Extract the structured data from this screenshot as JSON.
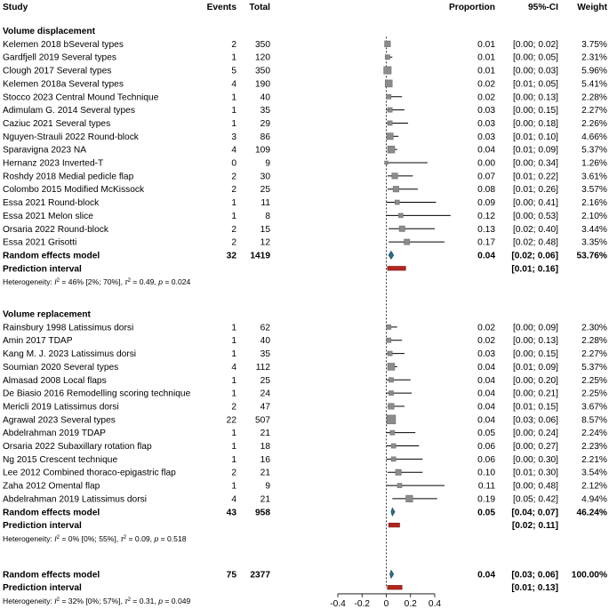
{
  "chart_data": {
    "type": "forest",
    "headers": {
      "study": "Study",
      "events": "Events",
      "total": "Total",
      "proportion": "Proportion",
      "ci": "95%-CI",
      "weight": "Weight"
    },
    "axis": {
      "min": -0.4,
      "max": 0.4,
      "ticks": [
        -0.4,
        -0.2,
        0,
        0.2,
        0.4
      ],
      "tick_labels": [
        "-0.4",
        "-0.2",
        "0",
        "0.2",
        "0.4"
      ],
      "reference_line": 0
    },
    "groups": [
      {
        "title": "Volume displacement",
        "studies": [
          {
            "study": "Kelemen 2018 bSeveral types",
            "events": "2",
            "total": "350",
            "prop": 0.01,
            "lo": 0.0,
            "hi": 0.02,
            "weight": 3.75,
            "prop_label": "0.01",
            "ci_label": "[0.00; 0.02]",
            "weight_label": "3.75%"
          },
          {
            "study": "Gardfjell 2019 Several types",
            "events": "1",
            "total": "120",
            "prop": 0.01,
            "lo": 0.0,
            "hi": 0.05,
            "weight": 2.31,
            "prop_label": "0.01",
            "ci_label": "[0.00; 0.05]",
            "weight_label": "2.31%"
          },
          {
            "study": "Clough 2017 Several types",
            "events": "5",
            "total": "350",
            "prop": 0.01,
            "lo": 0.0,
            "hi": 0.03,
            "weight": 5.96,
            "prop_label": "0.01",
            "ci_label": "[0.00; 0.03]",
            "weight_label": "5.96%"
          },
          {
            "study": "Kelemen 2018a Several types",
            "events": "4",
            "total": "190",
            "prop": 0.02,
            "lo": 0.01,
            "hi": 0.05,
            "weight": 5.41,
            "prop_label": "0.02",
            "ci_label": "[0.01; 0.05]",
            "weight_label": "5.41%"
          },
          {
            "study": "Stocco 2023 Central Mound Technique",
            "events": "1",
            "total": "40",
            "prop": 0.02,
            "lo": 0.0,
            "hi": 0.13,
            "weight": 2.28,
            "prop_label": "0.02",
            "ci_label": "[0.00; 0.13]",
            "weight_label": "2.28%"
          },
          {
            "study": "Adimulam G. 2014 Several types",
            "events": "1",
            "total": "35",
            "prop": 0.03,
            "lo": 0.0,
            "hi": 0.15,
            "weight": 2.27,
            "prop_label": "0.03",
            "ci_label": "[0.00; 0.15]",
            "weight_label": "2.27%"
          },
          {
            "study": "Caziuc 2021 Several types",
            "events": "1",
            "total": "29",
            "prop": 0.03,
            "lo": 0.0,
            "hi": 0.18,
            "weight": 2.26,
            "prop_label": "0.03",
            "ci_label": "[0.00; 0.18]",
            "weight_label": "2.26%"
          },
          {
            "study": "Nguyen-Strauli 2022 Round-block",
            "events": "3",
            "total": "86",
            "prop": 0.03,
            "lo": 0.01,
            "hi": 0.1,
            "weight": 4.66,
            "prop_label": "0.03",
            "ci_label": "[0.01; 0.10]",
            "weight_label": "4.66%"
          },
          {
            "study": "Sparavigna 2023 NA",
            "events": "4",
            "total": "109",
            "prop": 0.04,
            "lo": 0.01,
            "hi": 0.09,
            "weight": 5.37,
            "prop_label": "0.04",
            "ci_label": "[0.01; 0.09]",
            "weight_label": "5.37%"
          },
          {
            "study": "Hernanz 2023 Inverted-T",
            "events": "0",
            "total": "9",
            "prop": 0.0,
            "lo": 0.0,
            "hi": 0.34,
            "weight": 1.26,
            "prop_label": "0.00",
            "ci_label": "[0.00; 0.34]",
            "weight_label": "1.26%"
          },
          {
            "study": "Roshdy 2018 Medial pedicle flap",
            "events": "2",
            "total": "30",
            "prop": 0.07,
            "lo": 0.01,
            "hi": 0.22,
            "weight": 3.61,
            "prop_label": "0.07",
            "ci_label": "[0.01; 0.22]",
            "weight_label": "3.61%"
          },
          {
            "study": "Colombo 2015 Modified McKissock",
            "events": "2",
            "total": "25",
            "prop": 0.08,
            "lo": 0.01,
            "hi": 0.26,
            "weight": 3.57,
            "prop_label": "0.08",
            "ci_label": "[0.01; 0.26]",
            "weight_label": "3.57%"
          },
          {
            "study": "Essa 2021 Round-block",
            "events": "1",
            "total": "11",
            "prop": 0.09,
            "lo": 0.0,
            "hi": 0.41,
            "weight": 2.16,
            "prop_label": "0.09",
            "ci_label": "[0.00; 0.41]",
            "weight_label": "2.16%"
          },
          {
            "study": "Essa 2021 Melon slice",
            "events": "1",
            "total": "8",
            "prop": 0.12,
            "lo": 0.0,
            "hi": 0.53,
            "weight": 2.1,
            "prop_label": "0.12",
            "ci_label": "[0.00; 0.53]",
            "weight_label": "2.10%"
          },
          {
            "study": "Orsaria 2022 Round-block",
            "events": "2",
            "total": "15",
            "prop": 0.13,
            "lo": 0.02,
            "hi": 0.4,
            "weight": 3.44,
            "prop_label": "0.13",
            "ci_label": "[0.02; 0.40]",
            "weight_label": "3.44%"
          },
          {
            "study": "Essa 2021 Grisotti",
            "events": "2",
            "total": "12",
            "prop": 0.17,
            "lo": 0.02,
            "hi": 0.48,
            "weight": 3.35,
            "prop_label": "0.17",
            "ci_label": "[0.02; 0.48]",
            "weight_label": "3.35%"
          }
        ],
        "random_effects": {
          "label": "Random effects model",
          "events": "32",
          "total": "1419",
          "prop": 0.04,
          "lo": 0.02,
          "hi": 0.06,
          "prop_label": "0.04",
          "ci_label": "[0.02; 0.06]",
          "weight_label": "53.76%"
        },
        "prediction": {
          "label": "Prediction interval",
          "lo": 0.01,
          "hi": 0.16,
          "ci_label": "[0.01; 0.16]"
        },
        "heterogeneity": {
          "prefix": "Heterogeneity: ",
          "i2_sym": "I",
          "i2_sup": "2",
          "i2_val": " = 46% [2%; 70%], ",
          "tau_sym": "τ",
          "tau_sup": "2",
          "tau_val": " = 0.49, ",
          "p_sym": "p",
          "p_val": " = 0.024"
        }
      },
      {
        "title": "Volume replacement",
        "studies": [
          {
            "study": "Rainsbury 1998 Latissimus dorsi",
            "events": "1",
            "total": "62",
            "prop": 0.02,
            "lo": 0.0,
            "hi": 0.09,
            "weight": 2.3,
            "prop_label": "0.02",
            "ci_label": "[0.00; 0.09]",
            "weight_label": "2.30%"
          },
          {
            "study": "Amin 2017 TDAP",
            "events": "1",
            "total": "40",
            "prop": 0.02,
            "lo": 0.0,
            "hi": 0.13,
            "weight": 2.28,
            "prop_label": "0.02",
            "ci_label": "[0.00; 0.13]",
            "weight_label": "2.28%"
          },
          {
            "study": "Kang M. J. 2023 Latissimus dorsi",
            "events": "1",
            "total": "35",
            "prop": 0.03,
            "lo": 0.0,
            "hi": 0.15,
            "weight": 2.27,
            "prop_label": "0.03",
            "ci_label": "[0.00; 0.15]",
            "weight_label": "2.27%"
          },
          {
            "study": "Soumian 2020 Several types",
            "events": "4",
            "total": "112",
            "prop": 0.04,
            "lo": 0.01,
            "hi": 0.09,
            "weight": 5.37,
            "prop_label": "0.04",
            "ci_label": "[0.01; 0.09]",
            "weight_label": "5.37%"
          },
          {
            "study": "Almasad 2008 Local flaps",
            "events": "1",
            "total": "25",
            "prop": 0.04,
            "lo": 0.0,
            "hi": 0.2,
            "weight": 2.25,
            "prop_label": "0.04",
            "ci_label": "[0.00; 0.20]",
            "weight_label": "2.25%"
          },
          {
            "study": "De Biasio 2016 Remodelling scoring technique",
            "events": "1",
            "total": "24",
            "prop": 0.04,
            "lo": 0.0,
            "hi": 0.21,
            "weight": 2.25,
            "prop_label": "0.04",
            "ci_label": "[0.00; 0.21]",
            "weight_label": "2.25%"
          },
          {
            "study": "Mericli 2019 Latissimus dorsi",
            "events": "2",
            "total": "47",
            "prop": 0.04,
            "lo": 0.01,
            "hi": 0.15,
            "weight": 3.67,
            "prop_label": "0.04",
            "ci_label": "[0.01; 0.15]",
            "weight_label": "3.67%"
          },
          {
            "study": "Agrawal 2023 Several types",
            "events": "22",
            "total": "507",
            "prop": 0.04,
            "lo": 0.03,
            "hi": 0.06,
            "weight": 8.57,
            "prop_label": "0.04",
            "ci_label": "[0.03; 0.06]",
            "weight_label": "8.57%"
          },
          {
            "study": "Abdelrahman 2019 TDAP",
            "events": "1",
            "total": "21",
            "prop": 0.05,
            "lo": 0.0,
            "hi": 0.24,
            "weight": 2.24,
            "prop_label": "0.05",
            "ci_label": "[0.00; 0.24]",
            "weight_label": "2.24%"
          },
          {
            "study": "Orsaria 2022 Subaxillary rotation flap",
            "events": "1",
            "total": "18",
            "prop": 0.06,
            "lo": 0.0,
            "hi": 0.27,
            "weight": 2.23,
            "prop_label": "0.06",
            "ci_label": "[0.00; 0.27]",
            "weight_label": "2.23%"
          },
          {
            "study": "Ng 2015 Crescent technique",
            "events": "1",
            "total": "16",
            "prop": 0.06,
            "lo": 0.0,
            "hi": 0.3,
            "weight": 2.21,
            "prop_label": "0.06",
            "ci_label": "[0.00; 0.30]",
            "weight_label": "2.21%"
          },
          {
            "study": "Lee 2012 Combined thoraco-epigastric flap",
            "events": "2",
            "total": "21",
            "prop": 0.1,
            "lo": 0.01,
            "hi": 0.3,
            "weight": 3.54,
            "prop_label": "0.10",
            "ci_label": "[0.01; 0.30]",
            "weight_label": "3.54%"
          },
          {
            "study": "Zaha 2012 Omental flap",
            "events": "1",
            "total": "9",
            "prop": 0.11,
            "lo": 0.0,
            "hi": 0.48,
            "weight": 2.12,
            "prop_label": "0.11",
            "ci_label": "[0.00; 0.48]",
            "weight_label": "2.12%"
          },
          {
            "study": "Abdelrahman 2019 Latissimus dorsi",
            "events": "4",
            "total": "21",
            "prop": 0.19,
            "lo": 0.05,
            "hi": 0.42,
            "weight": 4.94,
            "prop_label": "0.19",
            "ci_label": "[0.05; 0.42]",
            "weight_label": "4.94%"
          }
        ],
        "random_effects": {
          "label": "Random effects model",
          "events": "43",
          "total": "958",
          "prop": 0.05,
          "lo": 0.04,
          "hi": 0.07,
          "prop_label": "0.05",
          "ci_label": "[0.04; 0.07]",
          "weight_label": "46.24%"
        },
        "prediction": {
          "label": "Prediction interval",
          "lo": 0.02,
          "hi": 0.11,
          "ci_label": "[0.02; 0.11]"
        },
        "heterogeneity": {
          "prefix": "Heterogeneity: ",
          "i2_sym": "I",
          "i2_sup": "2",
          "i2_val": " = 0% [0%; 55%], ",
          "tau_sym": "τ",
          "tau_sup": "2",
          "tau_val": " = 0.09, ",
          "p_sym": "p",
          "p_val": " = 0.518"
        }
      }
    ],
    "overall": {
      "random_effects": {
        "label": "Random effects model",
        "events": "75",
        "total": "2377",
        "prop": 0.04,
        "lo": 0.03,
        "hi": 0.06,
        "prop_label": "0.04",
        "ci_label": "[0.03; 0.06]",
        "weight_label": "100.00%"
      },
      "prediction": {
        "label": "Prediction interval",
        "lo": 0.01,
        "hi": 0.13,
        "ci_label": "[0.01; 0.13]"
      },
      "heterogeneity": {
        "prefix": "Heterogeneity: ",
        "i2_sym": "I",
        "i2_sup": "2",
        "i2_val": " = 32% [0%; 57%], ",
        "tau_sym": "τ",
        "tau_sup": "2",
        "tau_val": " = 0.31, ",
        "p_sym": "p",
        "p_val": " = 0.049"
      },
      "subgroup_test": {
        "prefix": "Test for subgroup differences: ",
        "chi_sym": "χ",
        "chi_sup": "2",
        "chi_sub": "1",
        "chi_val": " = 1.24, df = 1 (",
        "p_sym": "p",
        "p_val": " = 0.266)"
      }
    },
    "colors": {
      "square": "#8c8c8c",
      "square_stroke": "#6f6f6f",
      "ci_line": "#000000",
      "diamond": "#2b6f8f",
      "diamond_stroke": "#1c4f66",
      "prediction": "#b3261e",
      "prediction_stroke": "#7a1712",
      "reference_line": "#000000"
    }
  }
}
